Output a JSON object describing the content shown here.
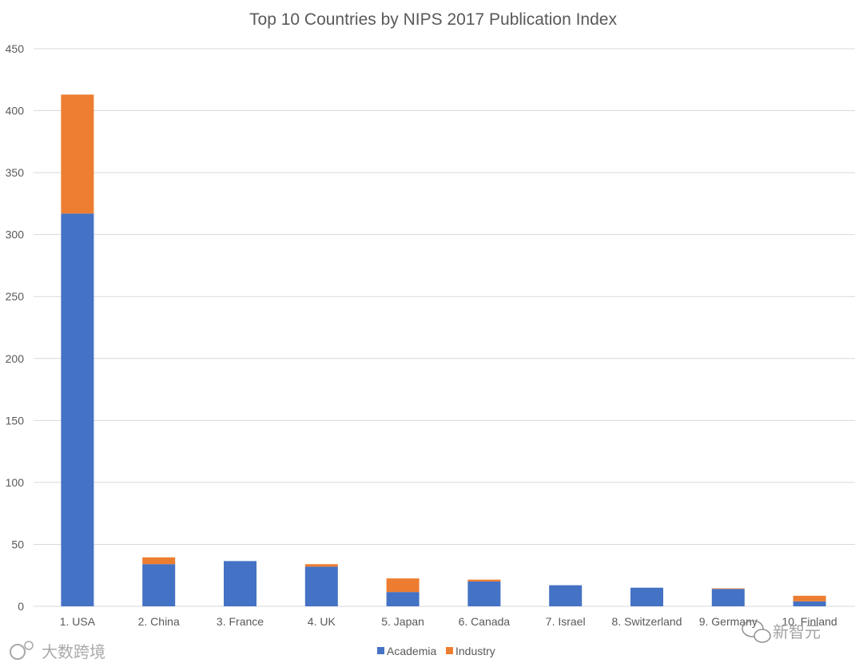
{
  "chart_data": {
    "type": "bar",
    "stacked": true,
    "title": "Top 10 Countries by NIPS 2017 Publication Index",
    "categories": [
      "1. USA",
      "2. China",
      "3. France",
      "4. UK",
      "5. Japan",
      "6. Canada",
      "7. Israel",
      "8. Switzerland",
      "9. Germany",
      "10. Finland"
    ],
    "series": [
      {
        "name": "Academia",
        "color": "#4472C4",
        "values": [
          317,
          34,
          36.5,
          32,
          11.5,
          20,
          17,
          15,
          14,
          4
        ]
      },
      {
        "name": "Industry",
        "color": "#ED7D31",
        "values": [
          96,
          5.5,
          0,
          2,
          11,
          1.5,
          0,
          0,
          0.5,
          4.5
        ]
      }
    ],
    "ylim": [
      0,
      450
    ],
    "yticks": [
      0,
      50,
      100,
      150,
      200,
      250,
      300,
      350,
      400,
      450
    ],
    "grid": true,
    "legend_position": "bottom"
  },
  "watermarks": {
    "left": "大数跨境",
    "right": "新智元"
  }
}
